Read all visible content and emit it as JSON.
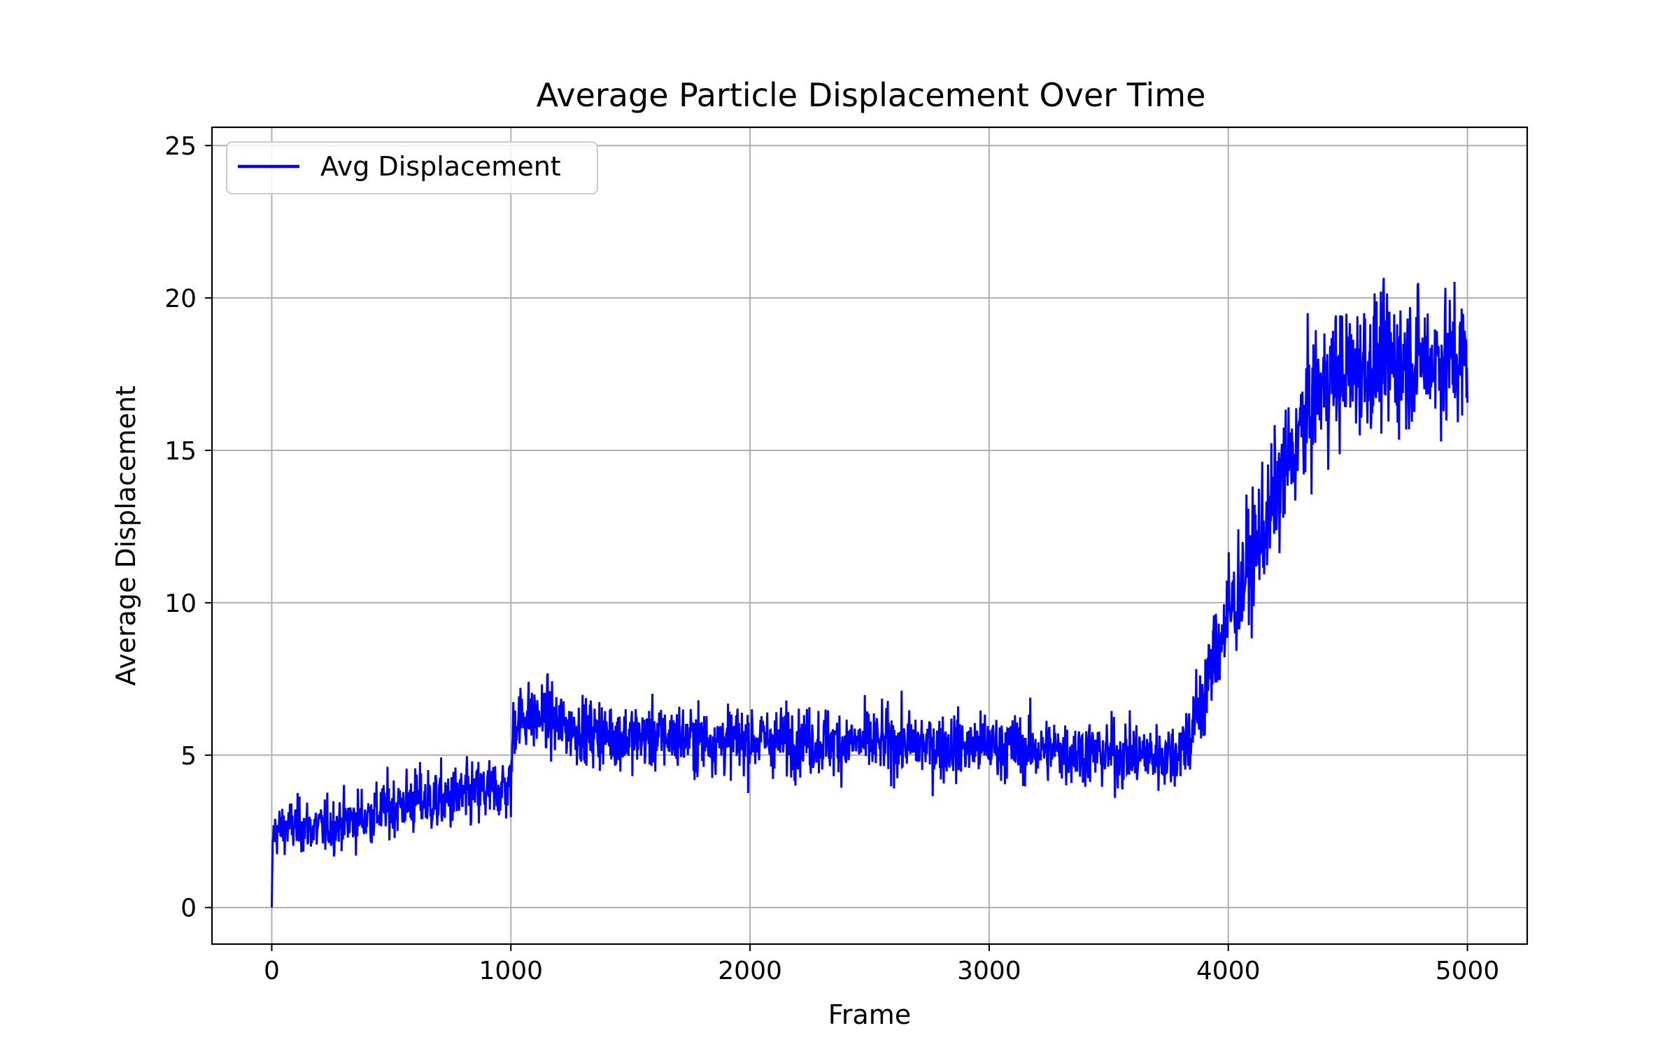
{
  "chart_data": {
    "type": "line",
    "title": "Average Particle Displacement Over Time",
    "xlabel": "Frame",
    "ylabel": "Average Displacement",
    "xlim": [
      -250,
      5250
    ],
    "ylim": [
      -1.2,
      25.6
    ],
    "xticks": [
      0,
      1000,
      2000,
      3000,
      4000,
      5000
    ],
    "yticks": [
      0,
      5,
      10,
      15,
      20,
      25
    ],
    "grid": true,
    "legend_position": "upper-left",
    "series": [
      {
        "name": "Avg Displacement",
        "color": "#0000ff",
        "x": [
          0,
          5,
          10,
          50,
          100,
          200,
          300,
          400,
          500,
          600,
          700,
          800,
          900,
          1000,
          1010,
          1050,
          1100,
          1150,
          1200,
          1300,
          1400,
          1500,
          1600,
          1700,
          1800,
          1900,
          2000,
          2200,
          2400,
          2600,
          2800,
          3000,
          3200,
          3400,
          3600,
          3700,
          3750,
          3800,
          3850,
          3900,
          3950,
          4000,
          4050,
          4100,
          4150,
          4200,
          4250,
          4300,
          4350,
          4400,
          4500,
          4600,
          4700,
          4800,
          4900,
          5000
        ],
        "y": [
          0,
          2.4,
          2.5,
          2.6,
          2.7,
          2.6,
          2.8,
          3.0,
          3.3,
          3.5,
          3.5,
          3.6,
          3.8,
          4.0,
          6.0,
          6.3,
          6.2,
          6.3,
          6.0,
          5.8,
          5.7,
          5.6,
          5.6,
          5.6,
          5.5,
          5.5,
          5.5,
          5.5,
          5.4,
          5.4,
          5.3,
          5.3,
          5.2,
          5.1,
          5.0,
          5.0,
          5.0,
          5.2,
          5.8,
          7.0,
          8.5,
          9.5,
          10.5,
          11.5,
          12.5,
          13.5,
          14.5,
          15.5,
          16.5,
          17.2,
          17.6,
          17.8,
          17.9,
          18.0,
          18.0,
          18.0
        ],
        "noise_amplitude": [
          0,
          0.6,
          0.7,
          0.8,
          0.8,
          0.8,
          0.8,
          0.9,
          0.9,
          1.0,
          1.0,
          1.0,
          1.0,
          1.0,
          1.0,
          1.0,
          1.0,
          1.0,
          1.0,
          1.0,
          1.0,
          1.0,
          1.0,
          1.0,
          1.0,
          1.0,
          1.0,
          1.0,
          1.0,
          1.0,
          1.0,
          1.0,
          1.0,
          1.0,
          1.0,
          1.0,
          1.0,
          1.1,
          1.3,
          1.5,
          1.6,
          1.7,
          1.8,
          1.8,
          1.8,
          1.8,
          1.9,
          1.9,
          1.9,
          2.0,
          2.0,
          2.0,
          2.0,
          2.0,
          2.0,
          2.0
        ]
      }
    ]
  }
}
